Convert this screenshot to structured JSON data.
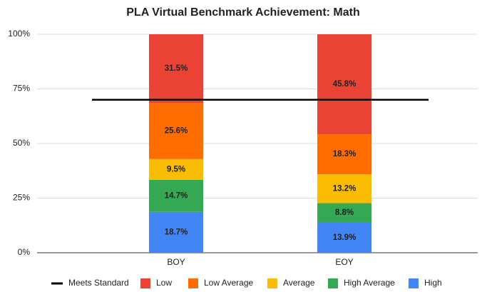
{
  "chart_data": {
    "type": "bar",
    "stacked": true,
    "title": "PLA Virtual Benchmark Achievement: Math",
    "categories": [
      "BOY",
      "EOY"
    ],
    "ylim": [
      0,
      100
    ],
    "yticks": [
      {
        "value": 0,
        "label": "0%"
      },
      {
        "value": 25,
        "label": "25%"
      },
      {
        "value": 50,
        "label": "50%"
      },
      {
        "value": 75,
        "label": "75%"
      },
      {
        "value": 100,
        "label": "100%"
      }
    ],
    "grid": true,
    "legend": "bottom",
    "series": [
      {
        "name": "Meets Standard",
        "type": "line",
        "color": "#000000",
        "values": [
          70,
          70
        ]
      },
      {
        "name": "Low",
        "color": "#ea4335",
        "values": [
          31.5,
          45.8
        ],
        "value_labels": [
          "31.5%",
          "45.8%"
        ]
      },
      {
        "name": "Low Average",
        "color": "#ff6d01",
        "values": [
          25.6,
          18.3
        ],
        "value_labels": [
          "25.6%",
          "18.3%"
        ]
      },
      {
        "name": "Average",
        "color": "#fbbc04",
        "values": [
          9.5,
          13.2
        ],
        "value_labels": [
          "9.5%",
          "13.2%"
        ]
      },
      {
        "name": "High Average",
        "color": "#34a853",
        "values": [
          14.7,
          8.8
        ],
        "value_labels": [
          "14.7%",
          "8.8%"
        ]
      },
      {
        "name": "High",
        "color": "#4285f4",
        "values": [
          18.7,
          13.9
        ],
        "value_labels": [
          "18.7%",
          "13.9%"
        ]
      }
    ]
  }
}
